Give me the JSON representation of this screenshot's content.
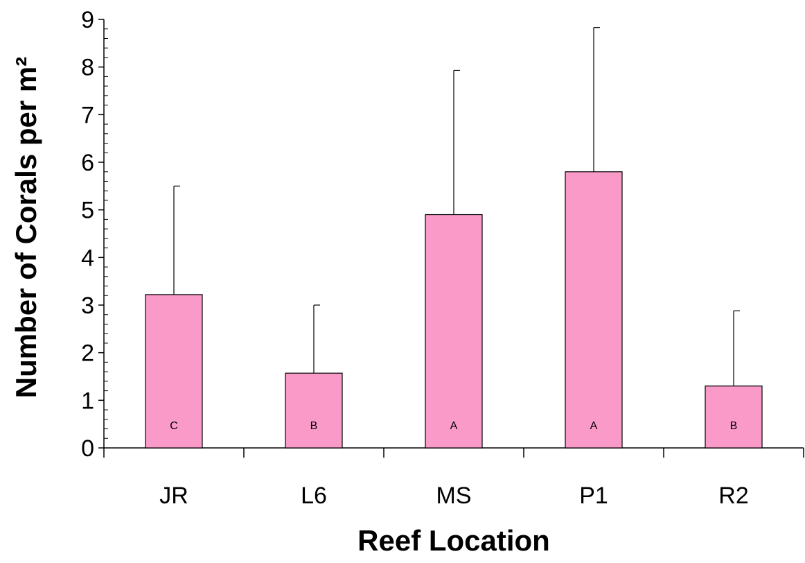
{
  "chart_data": {
    "type": "bar",
    "categories": [
      "JR",
      "L6",
      "MS",
      "P1",
      "R2"
    ],
    "values": [
      3.22,
      1.57,
      4.9,
      5.8,
      1.3
    ],
    "error_upper": [
      5.5,
      3.0,
      7.93,
      8.83,
      2.88
    ],
    "annotations": [
      "C",
      "B",
      "A",
      "A",
      "B"
    ],
    "title": "",
    "xlabel": "Reef Location",
    "ylabel": "Number of Corals per m²",
    "ylim": [
      0,
      9
    ],
    "yticks": [
      "0",
      "1",
      "2",
      "3",
      "4",
      "5",
      "6",
      "7",
      "8",
      "9"
    ],
    "grid": false,
    "bar_color": "#f99ac8"
  }
}
